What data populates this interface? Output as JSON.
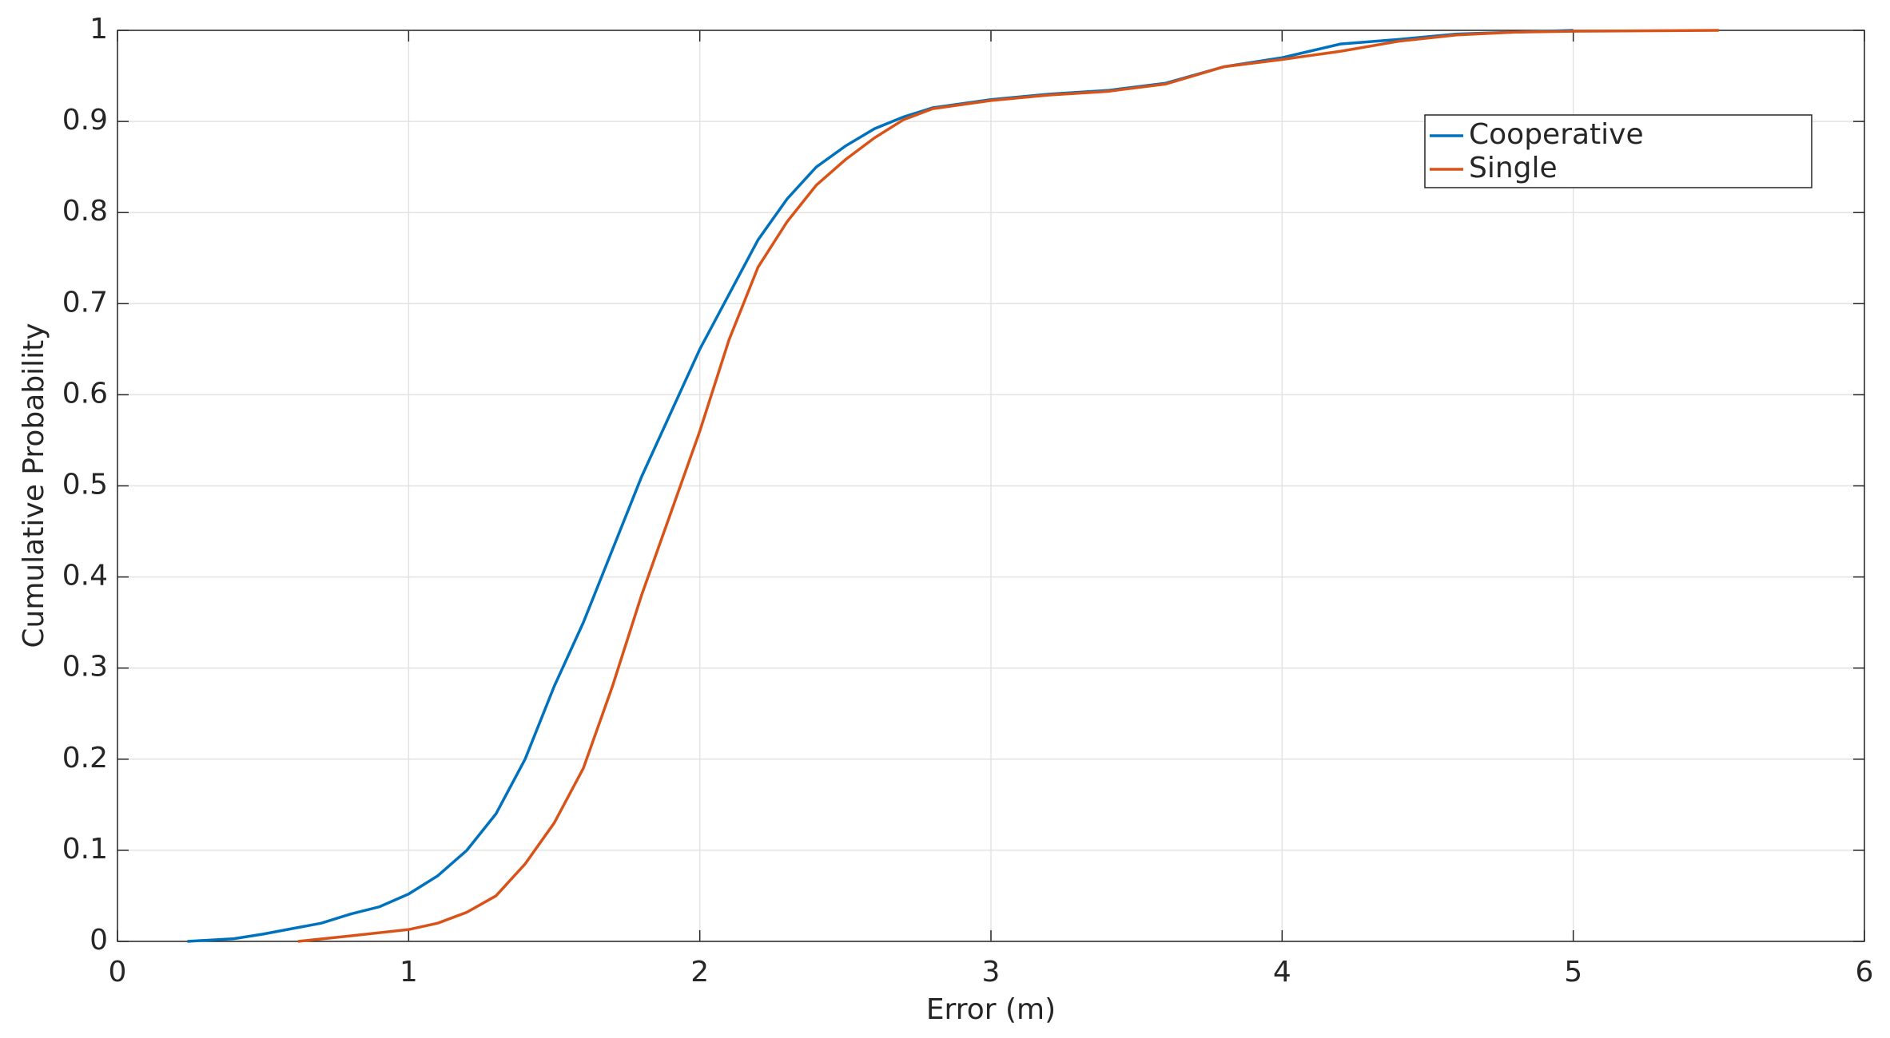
{
  "chart_data": {
    "type": "line",
    "xlabel": "Error (m)",
    "ylabel": "Cumulative Probability",
    "xlim": [
      0,
      6
    ],
    "ylim": [
      0,
      1
    ],
    "xticks": [
      0,
      1,
      2,
      3,
      4,
      5,
      6
    ],
    "yticks": [
      0,
      0.1,
      0.2,
      0.3,
      0.4,
      0.5,
      0.6,
      0.7,
      0.8,
      0.9,
      1
    ],
    "grid": true,
    "legend": "upper right",
    "series": [
      {
        "name": "Cooperative",
        "color": "#0072bd",
        "x": [
          0.24,
          0.4,
          0.5,
          0.6,
          0.7,
          0.8,
          0.9,
          1.0,
          1.1,
          1.2,
          1.3,
          1.4,
          1.5,
          1.6,
          1.7,
          1.8,
          1.9,
          2.0,
          2.1,
          2.2,
          2.3,
          2.4,
          2.5,
          2.6,
          2.7,
          2.8,
          3.0,
          3.2,
          3.4,
          3.6,
          3.8,
          4.0,
          4.2,
          4.4,
          4.6,
          4.8,
          5.0
        ],
        "values": [
          0,
          0.003,
          0.008,
          0.014,
          0.02,
          0.03,
          0.038,
          0.052,
          0.072,
          0.1,
          0.14,
          0.2,
          0.28,
          0.35,
          0.43,
          0.51,
          0.58,
          0.65,
          0.71,
          0.77,
          0.815,
          0.85,
          0.873,
          0.892,
          0.905,
          0.915,
          0.924,
          0.93,
          0.934,
          0.942,
          0.96,
          0.97,
          0.985,
          0.99,
          0.996,
          0.998,
          1.0
        ]
      },
      {
        "name": "Single",
        "color": "#d95319",
        "x": [
          0.62,
          0.8,
          1.0,
          1.1,
          1.2,
          1.3,
          1.4,
          1.5,
          1.6,
          1.7,
          1.8,
          1.9,
          2.0,
          2.1,
          2.2,
          2.3,
          2.4,
          2.5,
          2.6,
          2.7,
          2.8,
          3.0,
          3.2,
          3.4,
          3.6,
          3.8,
          4.0,
          4.2,
          4.4,
          4.6,
          4.8,
          5.0,
          5.5
        ],
        "values": [
          0,
          0.006,
          0.013,
          0.02,
          0.032,
          0.05,
          0.085,
          0.13,
          0.19,
          0.28,
          0.38,
          0.47,
          0.56,
          0.66,
          0.74,
          0.79,
          0.83,
          0.858,
          0.882,
          0.902,
          0.914,
          0.923,
          0.929,
          0.933,
          0.941,
          0.96,
          0.968,
          0.977,
          0.988,
          0.995,
          0.998,
          0.999,
          1.0
        ]
      }
    ]
  }
}
